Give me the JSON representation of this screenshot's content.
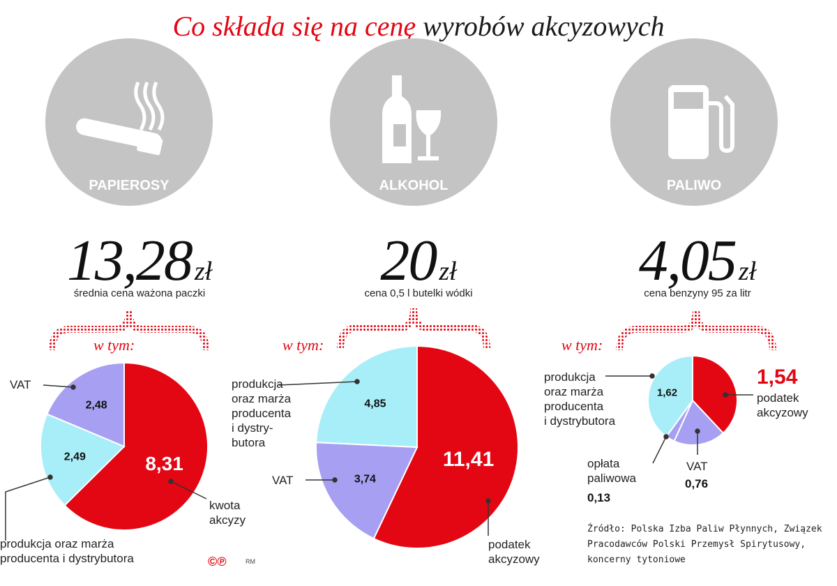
{
  "title": {
    "part1": "Co składa się na cenę",
    "part2": "wyrobów akcyzowych"
  },
  "colors": {
    "red": "#e30613",
    "cyan": "#a8eef8",
    "purple": "#a7a0f2",
    "gray": "#c4c4c4"
  },
  "panels": [
    {
      "name": "PAPIEROSY",
      "icon": "cigarette-icon",
      "price": "13,28",
      "unit": "zł",
      "subtitle": "średnia cena ważona paczki",
      "in_which": "w tym:"
    },
    {
      "name": "ALKOHOL",
      "icon": "bottle-glass-icon",
      "price": "20",
      "unit": "zł",
      "subtitle": "cena 0,5 l butelki wódki",
      "in_which": "w tym:"
    },
    {
      "name": "PALIWO",
      "icon": "fuel-pump-icon",
      "price": "4,05",
      "unit": "zł",
      "subtitle": "cena benzyny 95 za litr",
      "in_which": "w tym:"
    }
  ],
  "chart_data": [
    {
      "type": "pie",
      "title": "PAPIEROSY",
      "slices": [
        {
          "label": "kwota akcyzy",
          "value": 8.31,
          "display": "8,31",
          "color": "#e30613"
        },
        {
          "label": "produkcja oraz marża producenta i dystrybutora",
          "value": 2.49,
          "display": "2,49",
          "color": "#a8eef8"
        },
        {
          "label": "VAT",
          "value": 2.48,
          "display": "2,48",
          "color": "#a7a0f2"
        }
      ]
    },
    {
      "type": "pie",
      "title": "ALKOHOL",
      "slices": [
        {
          "label": "podatek akcyzowy",
          "value": 11.41,
          "display": "11,41",
          "color": "#e30613"
        },
        {
          "label": "VAT",
          "value": 3.74,
          "display": "3,74",
          "color": "#a7a0f2"
        },
        {
          "label": "produkcja oraz marża producenta i dystrybutora",
          "value": 4.85,
          "display": "4,85",
          "color": "#a8eef8"
        }
      ]
    },
    {
      "type": "pie",
      "title": "PALIWO",
      "slices": [
        {
          "label": "podatek akcyzowy",
          "value": 1.54,
          "display": "1,54",
          "color": "#e30613"
        },
        {
          "label": "VAT",
          "value": 0.76,
          "display": "0,76",
          "color": "#a7a0f2"
        },
        {
          "label": "opłata paliwowa",
          "value": 0.13,
          "display": "0,13",
          "color": "#a7a0f2"
        },
        {
          "label": "produkcja oraz marża producenta i dystrybutora",
          "value": 1.62,
          "display": "1,62",
          "color": "#a8eef8"
        }
      ]
    }
  ],
  "labels": {
    "p1_vat": "VAT",
    "p1_prod": "produkcja oraz marża\nproducenta i dystrybutora",
    "p1_excise": "kwota\nakcyzy",
    "p2_prod": "produkcja\noraz marża\nproducenta\ni dystry-\nbutora",
    "p2_vat": "VAT",
    "p2_excise": "podatek\nakcyzowy",
    "p3_prod": "produkcja\noraz marża\nproducenta\ni dystrybutora",
    "p3_excise": "podatek\nakcyzowy",
    "p3_fuel": "opłata\npaliwowa",
    "p3_vat": "VAT"
  },
  "source": "Źródło: Polska Izba Paliw Płynnych, Związek Pracodawców Polski Przemysł Spirytusowy, koncerny tytoniowe",
  "footer": {
    "logo": "©℗",
    "initials": "RM"
  }
}
